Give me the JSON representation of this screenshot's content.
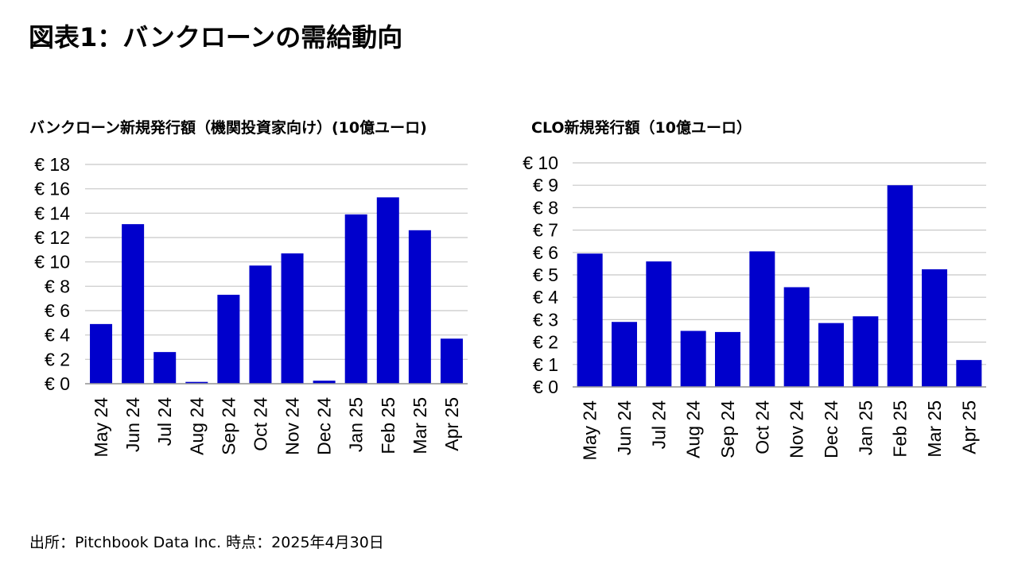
{
  "page": {
    "title": "図表1：バンクローンの需給動向",
    "source": "出所：Pitchbook Data Inc. 時点：2025年4月30日"
  },
  "colors": {
    "bar": "#0000CC",
    "grid": "#C8C8C8",
    "axis": "#A0A0A0"
  },
  "chart_data": [
    {
      "type": "bar",
      "title": "バンクローン新規発行額（機関投資家向け）(10億ユーロ)",
      "categories": [
        "May 24",
        "Jun 24",
        "Jul 24",
        "Aug 24",
        "Sep 24",
        "Oct 24",
        "Nov 24",
        "Dec 24",
        "Jan 25",
        "Feb 25",
        "Mar 25",
        "Apr 25"
      ],
      "values": [
        4.9,
        13.1,
        2.6,
        0.15,
        7.3,
        9.7,
        10.7,
        0.25,
        13.9,
        15.3,
        12.6,
        3.7
      ],
      "ylim": [
        0,
        18
      ],
      "yticks": [
        0,
        2,
        4,
        6,
        8,
        10,
        12,
        14,
        16,
        18
      ],
      "ytick_labels": [
        "€ 0",
        "€ 2",
        "€ 4",
        "€ 6",
        "€ 8",
        "€ 10",
        "€ 12",
        "€ 14",
        "€ 16",
        "€ 18"
      ],
      "xlabel": "",
      "ylabel": "",
      "grid": true
    },
    {
      "type": "bar",
      "title": "CLO新規発行額（10億ユーロ）",
      "categories": [
        "May 24",
        "Jun 24",
        "Jul 24",
        "Aug 24",
        "Sep 24",
        "Oct 24",
        "Nov 24",
        "Dec 24",
        "Jan 25",
        "Feb 25",
        "Mar 25",
        "Apr 25"
      ],
      "values": [
        5.95,
        2.9,
        5.6,
        2.5,
        2.45,
        6.05,
        4.45,
        2.85,
        3.15,
        9.0,
        5.25,
        1.2
      ],
      "ylim": [
        0,
        10
      ],
      "yticks": [
        0,
        1,
        2,
        3,
        4,
        5,
        6,
        7,
        8,
        9,
        10
      ],
      "ytick_labels": [
        "€ 0",
        "€ 1",
        "€ 2",
        "€ 3",
        "€ 4",
        "€ 5",
        "€ 6",
        "€ 7",
        "€ 8",
        "€ 9",
        "€ 10"
      ],
      "xlabel": "",
      "ylabel": "",
      "grid": true
    }
  ]
}
